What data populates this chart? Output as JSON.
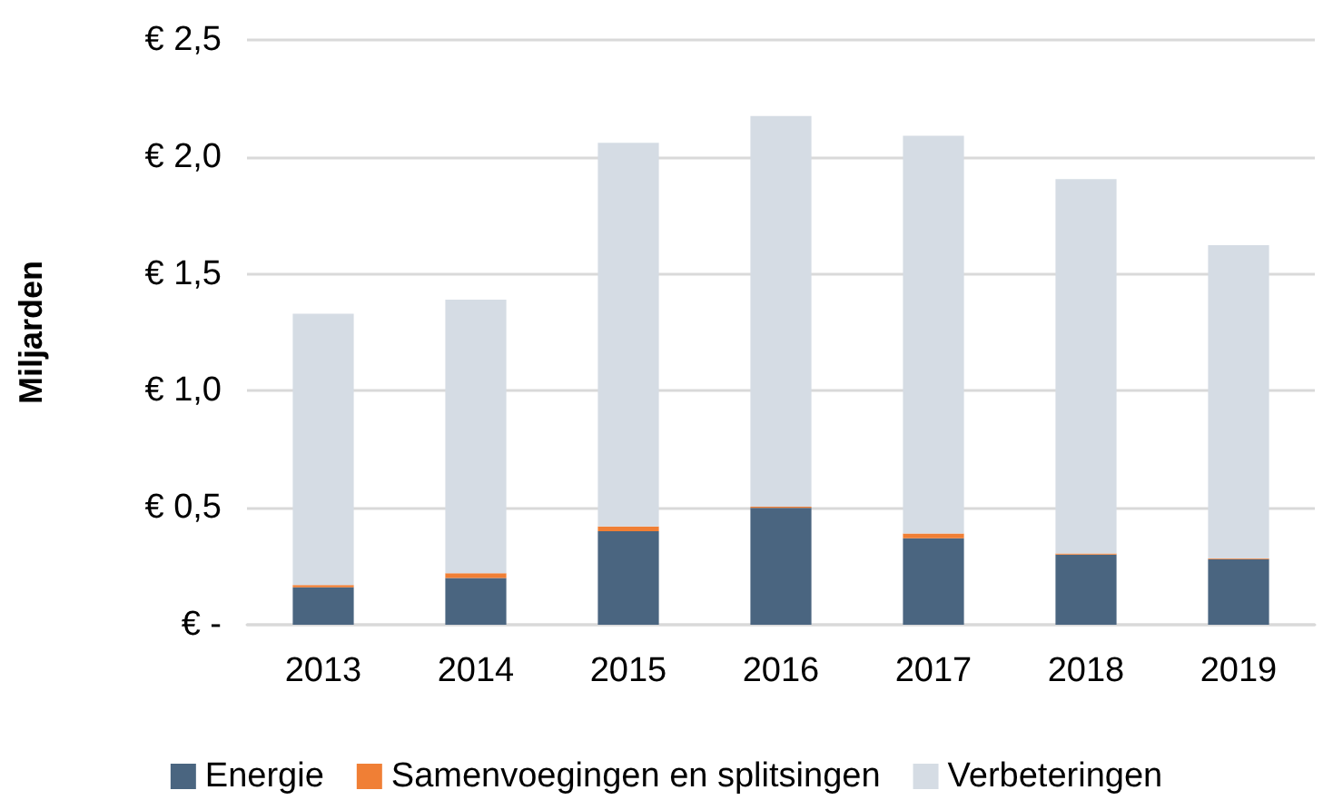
{
  "chart_data": {
    "type": "bar",
    "stacked": true,
    "ylabel": "Miljarden",
    "categories": [
      "2013",
      "2014",
      "2015",
      "2016",
      "2017",
      "2018",
      "2019"
    ],
    "series": [
      {
        "name": "Energie",
        "color": "#4a6580",
        "values": [
          0.16,
          0.2,
          0.4,
          0.5,
          0.37,
          0.3,
          0.28
        ]
      },
      {
        "name": "Samenvoegingen en splitsingen",
        "color": "#f07f35",
        "values": [
          0.01,
          0.02,
          0.02,
          0.005,
          0.02,
          0.005,
          0.003
        ]
      },
      {
        "name": "Verbeteringen",
        "color": "#d5dce4",
        "values": [
          1.16,
          1.17,
          1.64,
          1.67,
          1.7,
          1.6,
          1.34
        ]
      }
    ],
    "ylim": [
      0,
      2.5
    ],
    "yticks": [
      {
        "value": 0,
        "label": "€ -"
      },
      {
        "value": 0.5,
        "label": "€ 0,5"
      },
      {
        "value": 1,
        "label": "€ 1,0"
      },
      {
        "value": 1.5,
        "label": "€ 1,5"
      },
      {
        "value": 2,
        "label": "€ 2,0"
      },
      {
        "value": 2.5,
        "label": "€ 2,5"
      }
    ],
    "grid": "y",
    "legend": "bottom"
  }
}
